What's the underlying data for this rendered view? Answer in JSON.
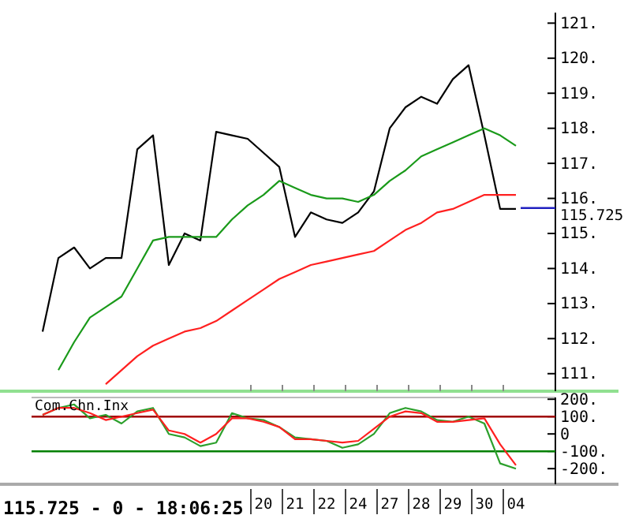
{
  "chart_data": [
    {
      "type": "line",
      "ylim": [
        110.5,
        121.3
      ],
      "tick_labels": "y",
      "categories": [
        null,
        null,
        null,
        null,
        null,
        null,
        null,
        null,
        null,
        null,
        null,
        null,
        null,
        null,
        "20",
        null,
        "21",
        null,
        "22",
        null,
        "24",
        null,
        "27",
        null,
        "28",
        null,
        "29",
        null,
        "30",
        null,
        "04"
      ],
      "yticks": [
        {
          "value": 121,
          "label": "121."
        },
        {
          "value": 120,
          "label": "120."
        },
        {
          "value": 119,
          "label": "119."
        },
        {
          "value": 118,
          "label": "118."
        },
        {
          "value": 117,
          "label": "117."
        },
        {
          "value": 116,
          "label": "116."
        },
        {
          "value": 115,
          "label": "115."
        },
        {
          "value": 114,
          "label": "114."
        },
        {
          "value": 113,
          "label": "113."
        },
        {
          "value": 112,
          "label": "112."
        },
        {
          "value": 111,
          "label": "111."
        }
      ],
      "series": [
        {
          "color": "#000000",
          "values": [
            112.2,
            114.3,
            114.6,
            114.0,
            114.3,
            114.3,
            117.4,
            117.8,
            114.1,
            115.0,
            114.8,
            117.9,
            117.8,
            117.7,
            117.3,
            116.9,
            114.9,
            115.6,
            115.4,
            115.3,
            115.6,
            116.2,
            118.0,
            118.6,
            118.9,
            118.7,
            119.4,
            119.8,
            117.8,
            115.7,
            115.7
          ]
        },
        {
          "color": "#1a9a1a",
          "values": [
            null,
            111.1,
            111.9,
            112.6,
            112.9,
            113.2,
            114.0,
            114.8,
            114.9,
            114.9,
            114.9,
            114.9,
            115.4,
            115.8,
            116.1,
            116.5,
            116.3,
            116.1,
            116.0,
            116.0,
            115.9,
            116.1,
            116.5,
            116.8,
            117.2,
            117.4,
            117.6,
            117.8,
            118.0,
            117.8,
            117.5
          ]
        },
        {
          "color": "#ff2020",
          "values": [
            null,
            null,
            null,
            null,
            110.7,
            111.1,
            111.5,
            111.8,
            112.0,
            112.2,
            112.3,
            112.5,
            112.8,
            113.1,
            113.4,
            113.7,
            113.9,
            114.1,
            114.2,
            114.3,
            114.4,
            114.5,
            114.8,
            115.1,
            115.3,
            115.6,
            115.7,
            115.9,
            116.1,
            116.1,
            116.1
          ]
        }
      ],
      "ref_lines": [
        {
          "axis": "y",
          "value": 115.725,
          "label": "115.725",
          "color": "#2020c0"
        }
      ]
    },
    {
      "type": "line",
      "title": "Com.Chn.Inx",
      "ylim": [
        -290,
        210
      ],
      "categories": [
        null,
        null,
        null,
        null,
        null,
        null,
        null,
        null,
        null,
        null,
        null,
        null,
        null,
        null,
        "20",
        null,
        "21",
        null,
        "22",
        null,
        "24",
        null,
        "27",
        null,
        "28",
        null,
        "29",
        null,
        "30",
        null,
        "04"
      ],
      "yticks": [
        {
          "value": 200,
          "label": "200."
        },
        {
          "value": 100,
          "label": "100."
        },
        0,
        {
          "value": -100,
          "label": "-100."
        },
        {
          "value": -200,
          "label": "-200."
        }
      ],
      "series": [
        {
          "color": "#2ca02c",
          "values": [
            110,
            150,
            170,
            90,
            110,
            60,
            130,
            150,
            0,
            -20,
            -70,
            -50,
            120,
            90,
            80,
            40,
            -20,
            -30,
            -40,
            -80,
            -60,
            0,
            120,
            150,
            130,
            80,
            70,
            100,
            60,
            -170,
            -200
          ]
        },
        {
          "color": "#ff2020",
          "values": [
            110,
            150,
            150,
            120,
            80,
            100,
            120,
            140,
            20,
            0,
            -50,
            0,
            90,
            90,
            70,
            40,
            -30,
            -30,
            -40,
            -50,
            -40,
            30,
            100,
            130,
            120,
            70,
            70,
            80,
            90,
            -60,
            -180
          ]
        }
      ],
      "ref_lines": [
        {
          "axis": "y",
          "value": 100,
          "color": "#a00000"
        },
        {
          "axis": "y",
          "value": -100,
          "color": "#008000"
        }
      ],
      "annotations": [
        "115.725 - 0 - 18:06:25"
      ]
    }
  ]
}
